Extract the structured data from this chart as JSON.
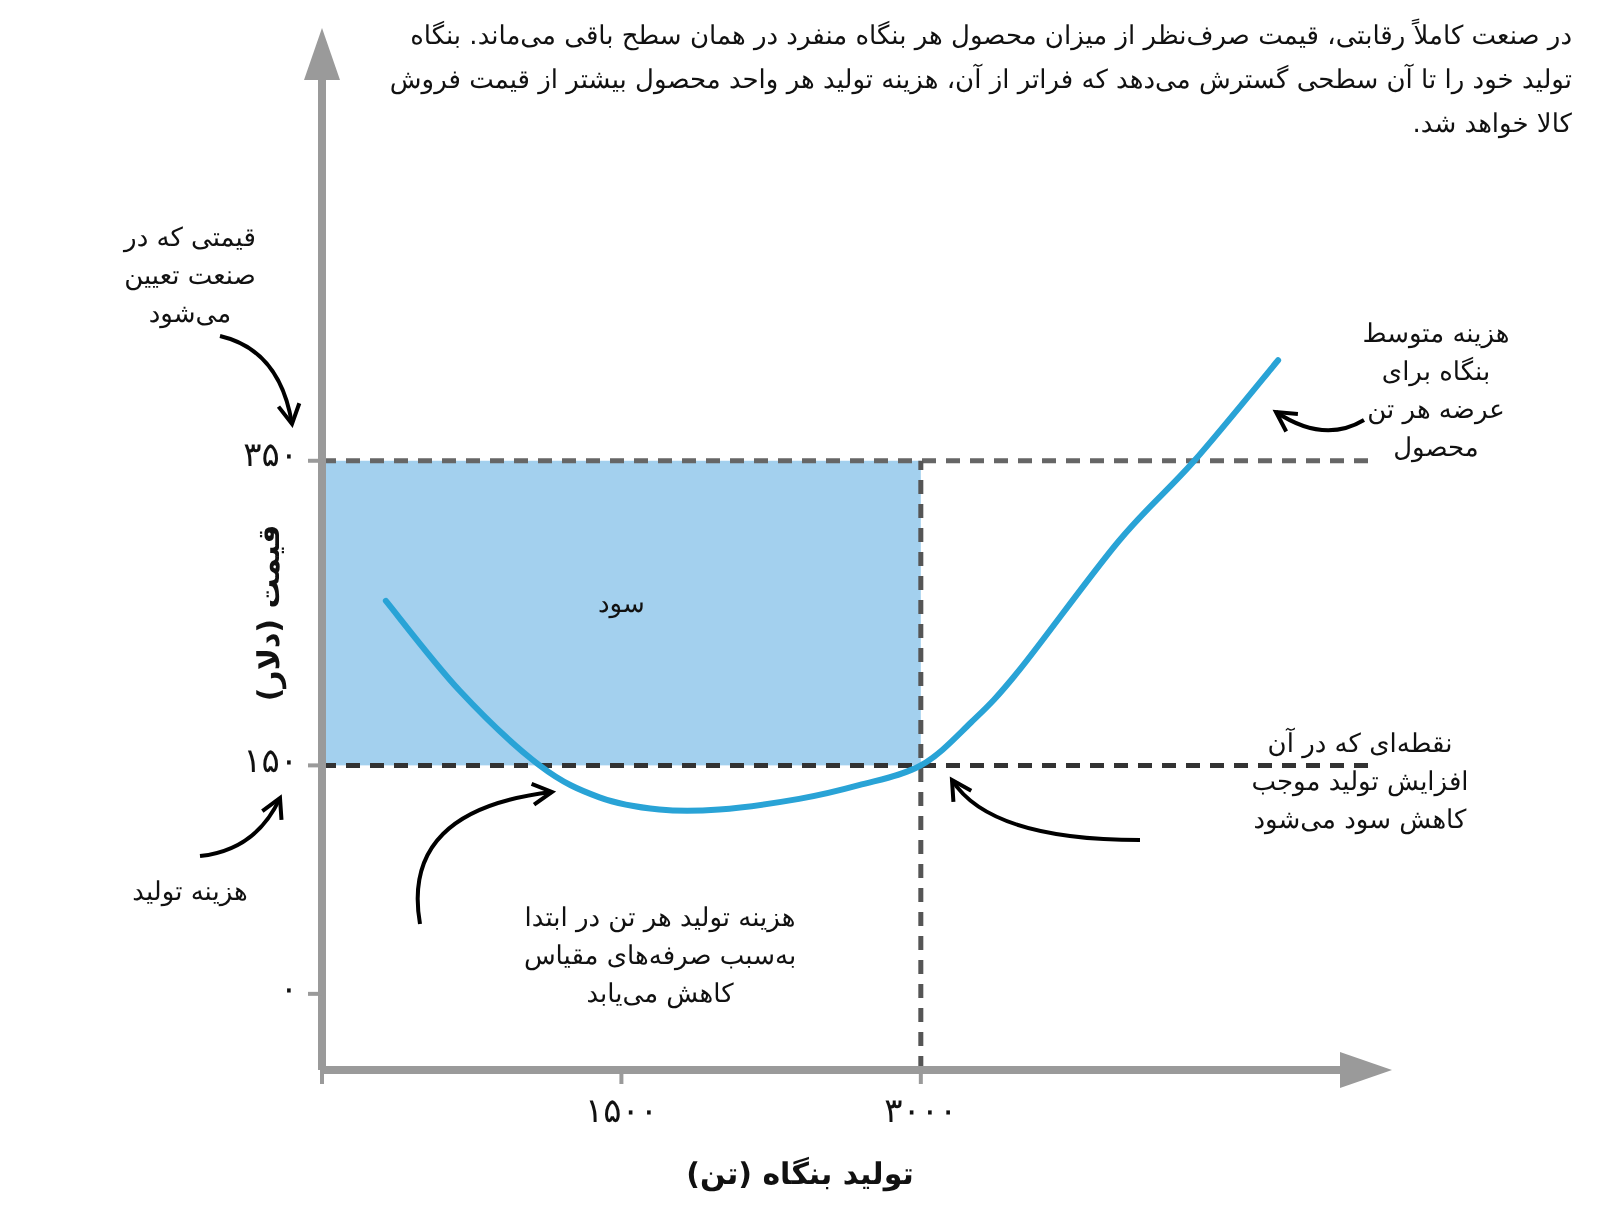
{
  "chart_data": {
    "type": "line",
    "title": "در صنعت کاملاً رقابتی، قیمت صرف‌نظر از میزان محصول هر بنگاه منفرد در همان سطح باقی می‌ماند. بنگاه تولید خود را تا آن سطحی گسترش می‌دهد که فراتر از آن، هزینه تولید هر واحد محصول بیشتر از قیمت فروش کالا خواهد شد.",
    "xlabel": "تولید بنگاه (تن)",
    "ylabel": "قیمت (دلار)",
    "xlim": [
      0,
      5100
    ],
    "ylim": [
      -50,
      600
    ],
    "xticks": [
      {
        "value": 0,
        "label": null
      },
      {
        "value": 1500,
        "label": "۱۵۰۰"
      },
      {
        "value": 3000,
        "label": "۳۰۰۰"
      }
    ],
    "yticks": [
      {
        "value": 0,
        "label": "۰"
      },
      {
        "value": 150,
        "label": "۱۵۰"
      },
      {
        "value": 350,
        "label": "۳۵۰"
      }
    ],
    "grid": false,
    "series": [
      {
        "type": "line",
        "color": "#29a3d6",
        "x": [
          320,
          690,
          1090,
          1390,
          1690,
          1990,
          2390,
          2690,
          3000,
          3250,
          3490,
          3990,
          4370,
          4790
        ],
        "values": [
          258,
          199,
          150,
          129,
          121,
          121,
          128,
          137,
          150,
          178,
          212,
          297,
          350,
          416
        ]
      }
    ],
    "bands": [
      {
        "axis": "y",
        "from": 150,
        "to": 350,
        "label": "سود",
        "color": "#a3d0ee"
      }
    ],
    "ref_lines": [
      {
        "axis": "y",
        "value": 350,
        "color": "#666666",
        "line_style": "dashed"
      },
      {
        "axis": "y",
        "value": 150,
        "color": "#333333",
        "line_style": "dashed"
      },
      {
        "axis": "x",
        "value": 3000,
        "color": "#555555",
        "line_style": "dashed"
      }
    ],
    "annotations": [
      "قیمتی که در\nصنعت تعیین\nمی‌شود",
      "هزینه تولید",
      "هزینه متوسط\nبنگاه برای\nعرضه هر تن\nمحصول",
      "نقطه‌ای که در آن\nافزایش تولید موجب\nکاهش سود می‌شود",
      "هزینه تولید هر تن در ابتدا\nبه‌سبب صرفه‌های مقیاس\nکاهش می‌یابد"
    ]
  }
}
